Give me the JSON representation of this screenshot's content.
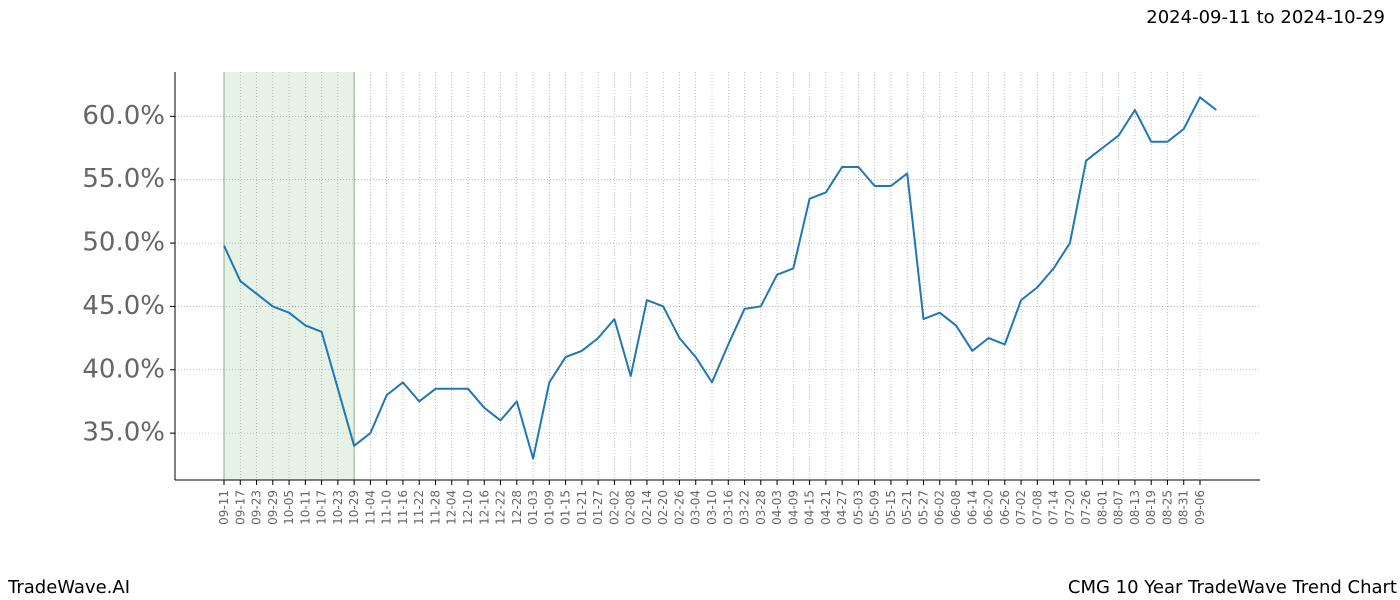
{
  "chart_data": {
    "type": "line",
    "date_range": "2024-09-11 to 2024-10-29",
    "brand": "TradeWave.AI",
    "title": "CMG 10 Year TradeWave Trend Chart",
    "categories": [
      "09-11",
      "09-17",
      "09-23",
      "09-29",
      "10-05",
      "10-11",
      "10-17",
      "10-23",
      "10-29",
      "11-04",
      "11-10",
      "11-16",
      "11-22",
      "11-28",
      "12-04",
      "12-10",
      "12-16",
      "12-22",
      "12-28",
      "01-03",
      "01-09",
      "01-15",
      "01-21",
      "01-27",
      "02-02",
      "02-08",
      "02-14",
      "02-20",
      "02-26",
      "03-04",
      "03-10",
      "03-16",
      "03-22",
      "03-28",
      "04-03",
      "04-09",
      "04-15",
      "04-21",
      "04-27",
      "05-03",
      "05-09",
      "05-15",
      "05-21",
      "05-27",
      "06-02",
      "06-08",
      "06-14",
      "06-20",
      "06-26",
      "07-02",
      "07-08",
      "07-14",
      "07-20",
      "07-26",
      "08-01",
      "08-07",
      "08-13",
      "08-19",
      "08-25",
      "08-31",
      "09-06",
      null
    ],
    "series": [
      {
        "color": "#1f77b4",
        "values": [
          49.8,
          47,
          46,
          45,
          44.5,
          43.5,
          43,
          38.5,
          34,
          35,
          38,
          39,
          37.5,
          38.5,
          38.5,
          38.5,
          37,
          36,
          37.5,
          33,
          39,
          41,
          41.5,
          42.5,
          44,
          39.5,
          45.5,
          45,
          42.5,
          41,
          39,
          42,
          44.8,
          45,
          47.5,
          48,
          53.5,
          54,
          56,
          56,
          54.5,
          54.5,
          55.5,
          44,
          44.5,
          43.5,
          41.5,
          42.5,
          42,
          45.5,
          46.5,
          48,
          50,
          56.5,
          57.5,
          58.5,
          60.5,
          58,
          58,
          59,
          61.5,
          60.5
        ]
      }
    ],
    "highlight": {
      "start": "09-11",
      "end": "10-29",
      "color": "#e6f2e6"
    },
    "ylim": [
      31.3,
      63.5
    ],
    "yticks": [
      {
        "value": 35,
        "label": "35.0%"
      },
      {
        "value": 40,
        "label": "40.0%"
      },
      {
        "value": 45,
        "label": "45.0%"
      },
      {
        "value": 50,
        "label": "50.0%"
      },
      {
        "value": 55,
        "label": "55.0%"
      },
      {
        "value": 60,
        "label": "60.0%"
      }
    ],
    "grid": true
  }
}
